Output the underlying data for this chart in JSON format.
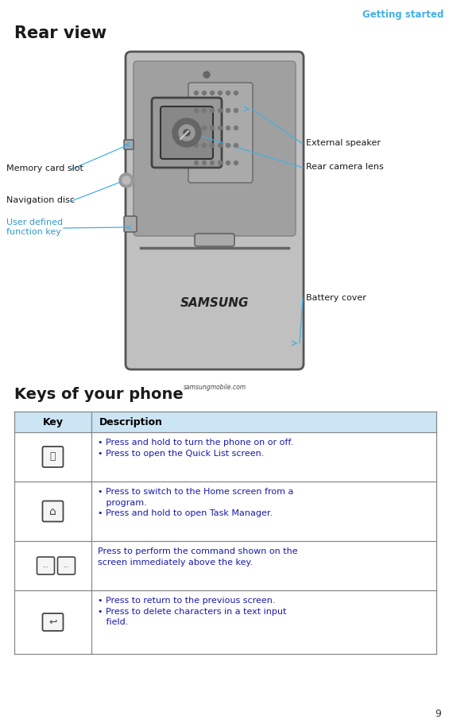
{
  "header_text": "Getting started",
  "header_color": "#45b0e5",
  "page_number": "9",
  "section1_title": "Rear view",
  "section2_title": "Keys of your phone",
  "bg_color": "#ffffff",
  "label_color_black": "#1a1a1a",
  "label_color_blue": "#3399cc",
  "arrow_color": "#45b0e5",
  "table_header_bg": "#cce5f5",
  "table_text_color": "#1a1aaa",
  "table_header_text_color": "#000000",
  "phone_gray_light": "#c0c0c0",
  "phone_gray_mid": "#a0a0a0",
  "phone_gray_dark": "#888888",
  "phone_border": "#555555"
}
